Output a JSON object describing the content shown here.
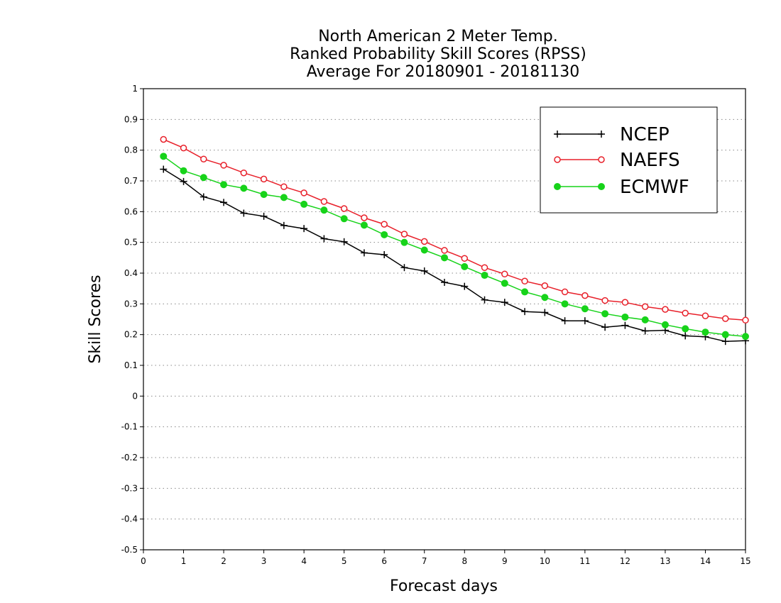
{
  "chart_data": {
    "type": "line",
    "title": [
      "North American 2 Meter Temp.",
      "Ranked Probability Skill Scores (RPSS)",
      "Average For 20180901 - 20181130"
    ],
    "xlabel": "Forecast days",
    "ylabel": "Skill Scores",
    "xlim": [
      0,
      15
    ],
    "ylim": [
      -0.5,
      1
    ],
    "xticks": [
      "0",
      "1",
      "2",
      "3",
      "4",
      "5",
      "6",
      "7",
      "8",
      "9",
      "10",
      "11",
      "12",
      "13",
      "14",
      "15"
    ],
    "yticks": [
      "1",
      "0.9",
      "0.8",
      "0.7",
      "0.6",
      "0.5",
      "0.4",
      "0.3",
      "0.2",
      "0.1",
      "0",
      "-0.1",
      "-0.2",
      "-0.3",
      "-0.4",
      "-0.5"
    ],
    "grid": "horizontal dotted",
    "legend_position": "top-right",
    "x": [
      0.5,
      1,
      1.5,
      2,
      2.5,
      3,
      3.5,
      4,
      4.5,
      5,
      5.5,
      6,
      6.5,
      7,
      7.5,
      8,
      8.5,
      9,
      9.5,
      10,
      10.5,
      11,
      11.5,
      12,
      12.5,
      13,
      13.5,
      14,
      14.5,
      15
    ],
    "series": [
      {
        "name": "NCEP",
        "color": "#000000",
        "marker": "plus",
        "values": [
          0.738,
          0.698,
          0.648,
          0.63,
          0.595,
          0.585,
          0.555,
          0.545,
          0.512,
          0.502,
          0.466,
          0.46,
          0.418,
          0.407,
          0.37,
          0.357,
          0.313,
          0.305,
          0.275,
          0.272,
          0.245,
          0.245,
          0.224,
          0.23,
          0.212,
          0.214,
          0.196,
          0.193,
          0.178,
          0.18
        ]
      },
      {
        "name": "NAEFS",
        "color": "#e8202a",
        "marker": "open-circle",
        "values": [
          0.835,
          0.807,
          0.771,
          0.751,
          0.726,
          0.706,
          0.681,
          0.661,
          0.633,
          0.61,
          0.58,
          0.559,
          0.527,
          0.503,
          0.474,
          0.448,
          0.418,
          0.397,
          0.374,
          0.359,
          0.339,
          0.327,
          0.311,
          0.305,
          0.291,
          0.282,
          0.27,
          0.261,
          0.252,
          0.247
        ]
      },
      {
        "name": "ECMWF",
        "color": "#17d31a",
        "marker": "filled-circle",
        "values": [
          0.78,
          0.733,
          0.711,
          0.688,
          0.676,
          0.656,
          0.646,
          0.624,
          0.605,
          0.577,
          0.556,
          0.525,
          0.5,
          0.475,
          0.45,
          0.421,
          0.393,
          0.367,
          0.339,
          0.321,
          0.3,
          0.284,
          0.268,
          0.257,
          0.248,
          0.232,
          0.219,
          0.208,
          0.2,
          0.194
        ]
      }
    ]
  }
}
